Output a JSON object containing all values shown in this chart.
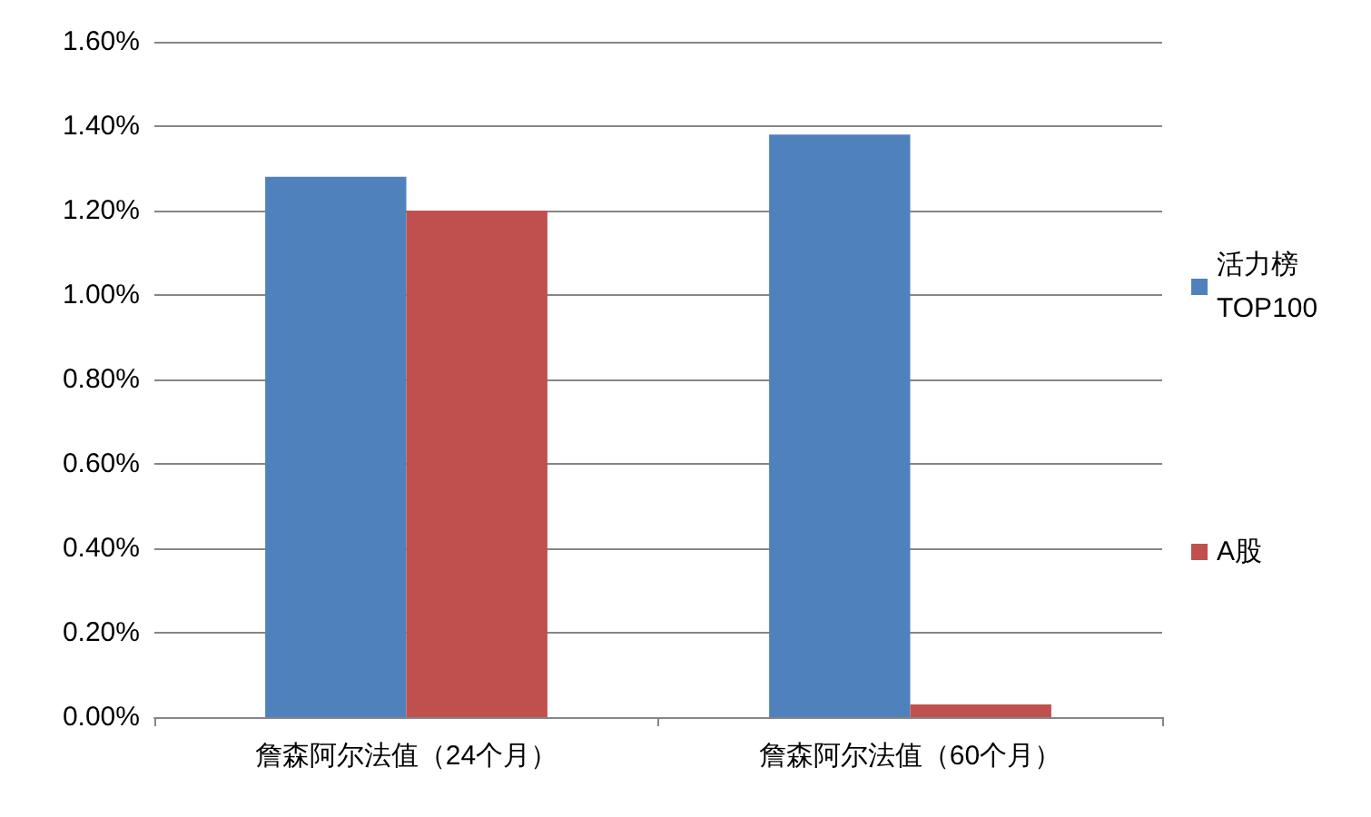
{
  "chart_data": {
    "type": "bar",
    "categories": [
      "詹森阿尔法值（24个月）",
      "詹森阿尔法值（60个月）"
    ],
    "series": [
      {
        "name": "活力榜TOP100",
        "color": "#4f81bd",
        "values": [
          1.28,
          1.38
        ]
      },
      {
        "name": "A股",
        "color": "#c0504d",
        "values": [
          1.2,
          0.03
        ]
      }
    ],
    "ylim": [
      0,
      1.6
    ],
    "yticks": [
      {
        "value": 0,
        "label": "0.00%"
      },
      {
        "value": 0.2,
        "label": "0.20%"
      },
      {
        "value": 0.4,
        "label": "0.40%"
      },
      {
        "value": 0.6,
        "label": "0.60%"
      },
      {
        "value": 0.8,
        "label": "0.80%"
      },
      {
        "value": 1.0,
        "label": "1.00%"
      },
      {
        "value": 1.2,
        "label": "1.20%"
      },
      {
        "value": 1.4,
        "label": "1.40%"
      },
      {
        "value": 1.6,
        "label": "1.60%"
      }
    ],
    "grid": "y",
    "legend": "right"
  }
}
